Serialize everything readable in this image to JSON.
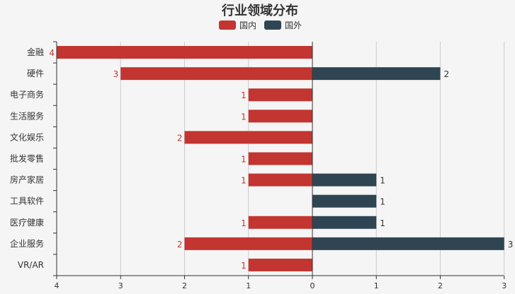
{
  "chart_data": {
    "type": "bar",
    "orientation": "horizontal-butterfly",
    "title": "行业领域分布",
    "legend_position": "top-center",
    "categories": [
      "金融",
      "硬件",
      "电子商务",
      "生活服务",
      "文化娱乐",
      "批发零售",
      "房产家居",
      "工具软件",
      "医疗健康",
      "企业服务",
      "VR/AR"
    ],
    "series": [
      {
        "name": "国内",
        "color": "#c23531",
        "values": [
          4,
          3,
          1,
          1,
          2,
          1,
          1,
          0,
          1,
          2,
          1
        ]
      },
      {
        "name": "国外",
        "color": "#2f4554",
        "values": [
          0,
          2,
          0,
          0,
          0,
          0,
          1,
          1,
          1,
          3,
          0
        ]
      }
    ],
    "x_ticks": [
      "4",
      "3",
      "2",
      "1",
      "0",
      "1",
      "2",
      "3"
    ],
    "xlim_left": 4,
    "xlim_right": 3,
    "grid": true
  }
}
